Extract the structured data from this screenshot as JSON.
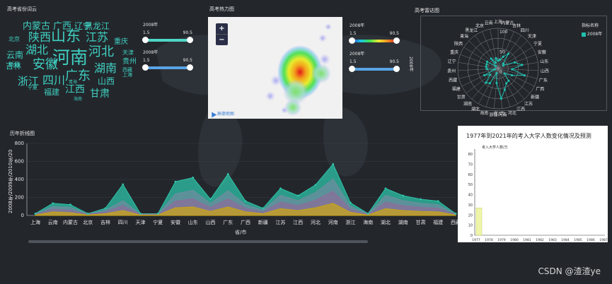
{
  "panels": {
    "wordcloud_title": "高考省份词云",
    "heatmap_title": "高考热力图",
    "radar_title": "高考雷达图",
    "line_title": "历年折线图"
  },
  "wordcloud": [
    {
      "text": "内蒙古",
      "size": 13
    },
    {
      "text": "广西",
      "size": 13
    },
    {
      "text": "辽宁",
      "size": 12
    },
    {
      "text": "黑龙江",
      "size": 12
    },
    {
      "text": "北京",
      "size": 8
    },
    {
      "text": "陕西",
      "size": 16
    },
    {
      "text": "山东",
      "size": 21
    },
    {
      "text": "江苏",
      "size": 16
    },
    {
      "text": "重庆",
      "size": 10
    },
    {
      "text": "湖北",
      "size": 16
    },
    {
      "text": "河北",
      "size": 18
    },
    {
      "text": "天津",
      "size": 8
    },
    {
      "text": "云南",
      "size": 12
    },
    {
      "text": "新疆",
      "size": 8
    },
    {
      "text": "河南",
      "size": 25
    },
    {
      "text": "贵州",
      "size": 10
    },
    {
      "text": "吉林",
      "size": 11
    },
    {
      "text": "安徽",
      "size": 18
    },
    {
      "text": "湖南",
      "size": 16
    },
    {
      "text": "西藏",
      "size": 7
    },
    {
      "text": "上海",
      "size": 7
    },
    {
      "text": "广东",
      "size": 18
    },
    {
      "text": "山西",
      "size": 12
    },
    {
      "text": "浙江",
      "size": 15
    },
    {
      "text": "四川",
      "size": 16
    },
    {
      "text": "青海",
      "size": 6
    },
    {
      "text": "宁夏",
      "size": 7
    },
    {
      "text": "江西",
      "size": 14
    },
    {
      "text": "甘肃",
      "size": 14
    },
    {
      "text": "福建",
      "size": 11
    },
    {
      "text": "海南",
      "size": 6
    }
  ],
  "sliders": {
    "left_top": {
      "year": "2008年",
      "min": "1.5",
      "max": "90.5",
      "color": "#4fd6c6"
    },
    "left_bottom": {
      "year": "2008年",
      "min": "1.5",
      "max": "90.5",
      "color": "#5aa4e6"
    },
    "right_top": {
      "year": "2008年",
      "min": "1.5",
      "max": "90.5",
      "color": "gradient"
    },
    "right_bottom": {
      "year": "2008年",
      "min": "1.5",
      "max": "90.5",
      "color": "#5aa4e6"
    }
  },
  "heatmap": {
    "zoom_in": "+",
    "zoom_out": "−",
    "logo": "高德地图"
  },
  "radar": {
    "axis_name": "2008年",
    "x_label": "省/市",
    "legend_title": "指标名称",
    "legend_item": "2008年",
    "ticks": [
      "100",
      "50",
      "0"
    ],
    "categories": [
      "上海",
      "内蒙古",
      "吉林",
      "四川",
      "天津",
      "宁夏",
      "安徽",
      "山东",
      "山西",
      "广东",
      "广西",
      "新疆",
      "江苏",
      "江西",
      "河北",
      "河南",
      "浙江",
      "海南",
      "湖北",
      "湖南",
      "甘肃",
      "福建",
      "西藏",
      "贵州",
      "辽宁",
      "重庆",
      "陕西",
      "青海",
      "黑龙江",
      "北京",
      "云南"
    ],
    "values": [
      20,
      22,
      32,
      45,
      18,
      15,
      44,
      60,
      35,
      68,
      38,
      20,
      40,
      42,
      55,
      75,
      36,
      12,
      42,
      46,
      25,
      38,
      8,
      28,
      30,
      30,
      32,
      8,
      30,
      16,
      26
    ]
  },
  "chart_data": {
    "type": "area",
    "title": "",
    "ylabel": "2008年/2009年/2010年/20",
    "xlabel": "省/市",
    "ylim": [
      0,
      800
    ],
    "yticks": [
      0,
      200,
      400,
      600,
      800
    ],
    "categories": [
      "上海",
      "云南",
      "内蒙古",
      "北京",
      "吉林",
      "四川",
      "天津",
      "宁夏",
      "安徽",
      "山东",
      "山西",
      "广东",
      "广西",
      "新疆",
      "江苏",
      "江西",
      "河北",
      "河南",
      "浙江",
      "海南",
      "湖北",
      "湖南",
      "甘肃",
      "福建",
      "西藏"
    ],
    "series": [
      {
        "color": "#c8a418",
        "values": [
          5,
          40,
          30,
          5,
          20,
          55,
          5,
          5,
          85,
          95,
          45,
          95,
          40,
          20,
          75,
          55,
          85,
          135,
          35,
          5,
          75,
          55,
          45,
          40,
          5
        ]
      },
      {
        "color": "#8b6f9a",
        "values": [
          10,
          70,
          60,
          10,
          40,
          110,
          10,
          10,
          160,
          185,
          90,
          185,
          80,
          40,
          150,
          110,
          170,
          270,
          70,
          10,
          150,
          110,
          90,
          80,
          10
        ]
      },
      {
        "color": "#6e8ea0",
        "values": [
          15,
          100,
          90,
          15,
          60,
          165,
          15,
          15,
          240,
          280,
          135,
          275,
          120,
          60,
          225,
          165,
          255,
          405,
          105,
          15,
          225,
          165,
          135,
          120,
          15
        ]
      },
      {
        "color": "#2ec4a8",
        "values": [
          20,
          135,
          120,
          20,
          80,
          345,
          20,
          20,
          375,
          420,
          180,
          460,
          160,
          80,
          300,
          220,
          340,
          570,
          140,
          20,
          300,
          220,
          180,
          160,
          20
        ]
      }
    ]
  },
  "bar_card": {
    "title": "1977年到2021年的考入大学人数变化情况及预测",
    "legend": "考入大学人数/万",
    "yticks": [
      "80",
      "70",
      "60",
      "50",
      "40",
      "30",
      "20",
      "10",
      "0"
    ],
    "xticks": [
      "1977",
      "1978",
      "1979",
      "1980",
      "1981",
      "1982",
      "1983",
      "1984",
      "1985",
      "1986",
      "1987"
    ],
    "values": [
      {
        "year": "1977",
        "value": 27
      }
    ],
    "ylim": [
      0,
      85
    ],
    "bar_color": "#eef5a8"
  },
  "watermark": "CSDN @渣渣ye"
}
